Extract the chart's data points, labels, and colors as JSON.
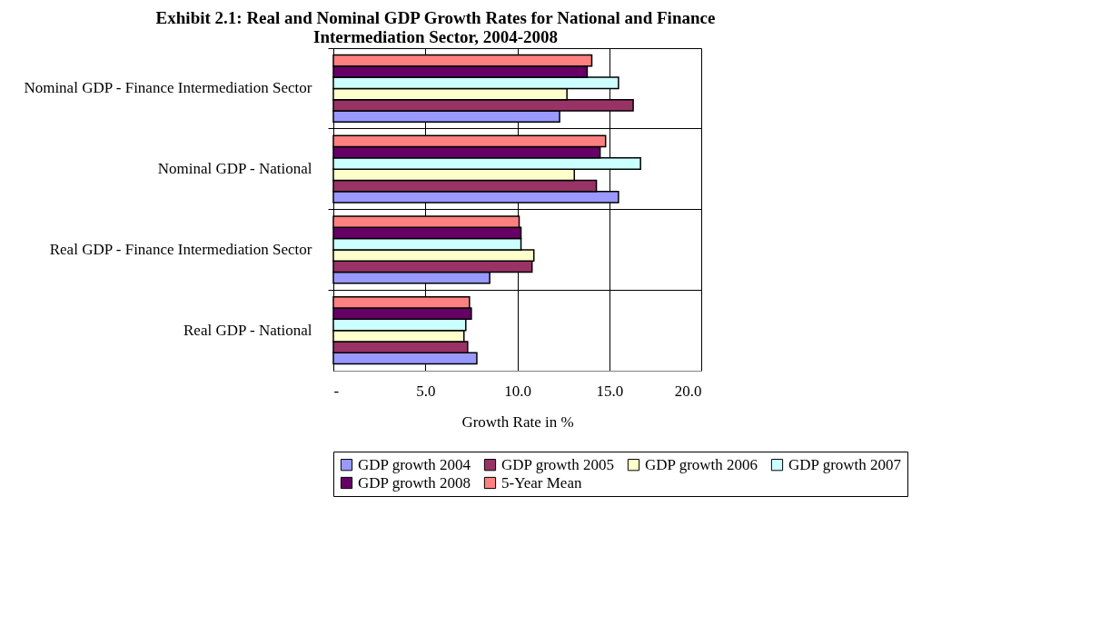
{
  "chart_data": {
    "type": "bar",
    "orientation": "horizontal",
    "title": [
      "Exhibit 2.1: Real and Nominal GDP Growth Rates for National and Finance",
      "Intermediation Sector, 2004-2008"
    ],
    "xlabel": "Growth Rate in %",
    "categories": [
      "Nominal GDP - Finance Intermediation Sector",
      "Nominal GDP - National",
      "Real GDP - Finance Intermediation Sector",
      "Real GDP - National"
    ],
    "series": [
      {
        "name": "GDP growth 2004",
        "color": "#9999ff",
        "values": [
          12.3,
          15.5,
          8.5,
          7.8
        ]
      },
      {
        "name": "GDP growth 2005",
        "color": "#993366",
        "values": [
          16.3,
          14.3,
          10.8,
          7.3
        ]
      },
      {
        "name": "GDP growth 2006",
        "color": "#ffffcc",
        "values": [
          12.7,
          13.1,
          10.9,
          7.1
        ]
      },
      {
        "name": "GDP growth 2007",
        "color": "#ccffff",
        "values": [
          15.5,
          16.7,
          10.2,
          7.2
        ]
      },
      {
        "name": "GDP growth 2008",
        "color": "#660066",
        "values": [
          13.8,
          14.5,
          10.2,
          7.5
        ]
      },
      {
        "name": "5-Year Mean",
        "color": "#ff8080",
        "values": [
          14.05,
          14.8,
          10.1,
          7.4
        ]
      }
    ],
    "xlim": [
      0,
      20
    ],
    "xticks": [
      {
        "value": 0,
        "label": "-"
      },
      {
        "value": 5,
        "label": "5.0"
      },
      {
        "value": 10,
        "label": "10.0"
      },
      {
        "value": 15,
        "label": "15.0"
      },
      {
        "value": 20,
        "label": "20.0"
      }
    ],
    "grid": true,
    "legend": "bottom"
  }
}
